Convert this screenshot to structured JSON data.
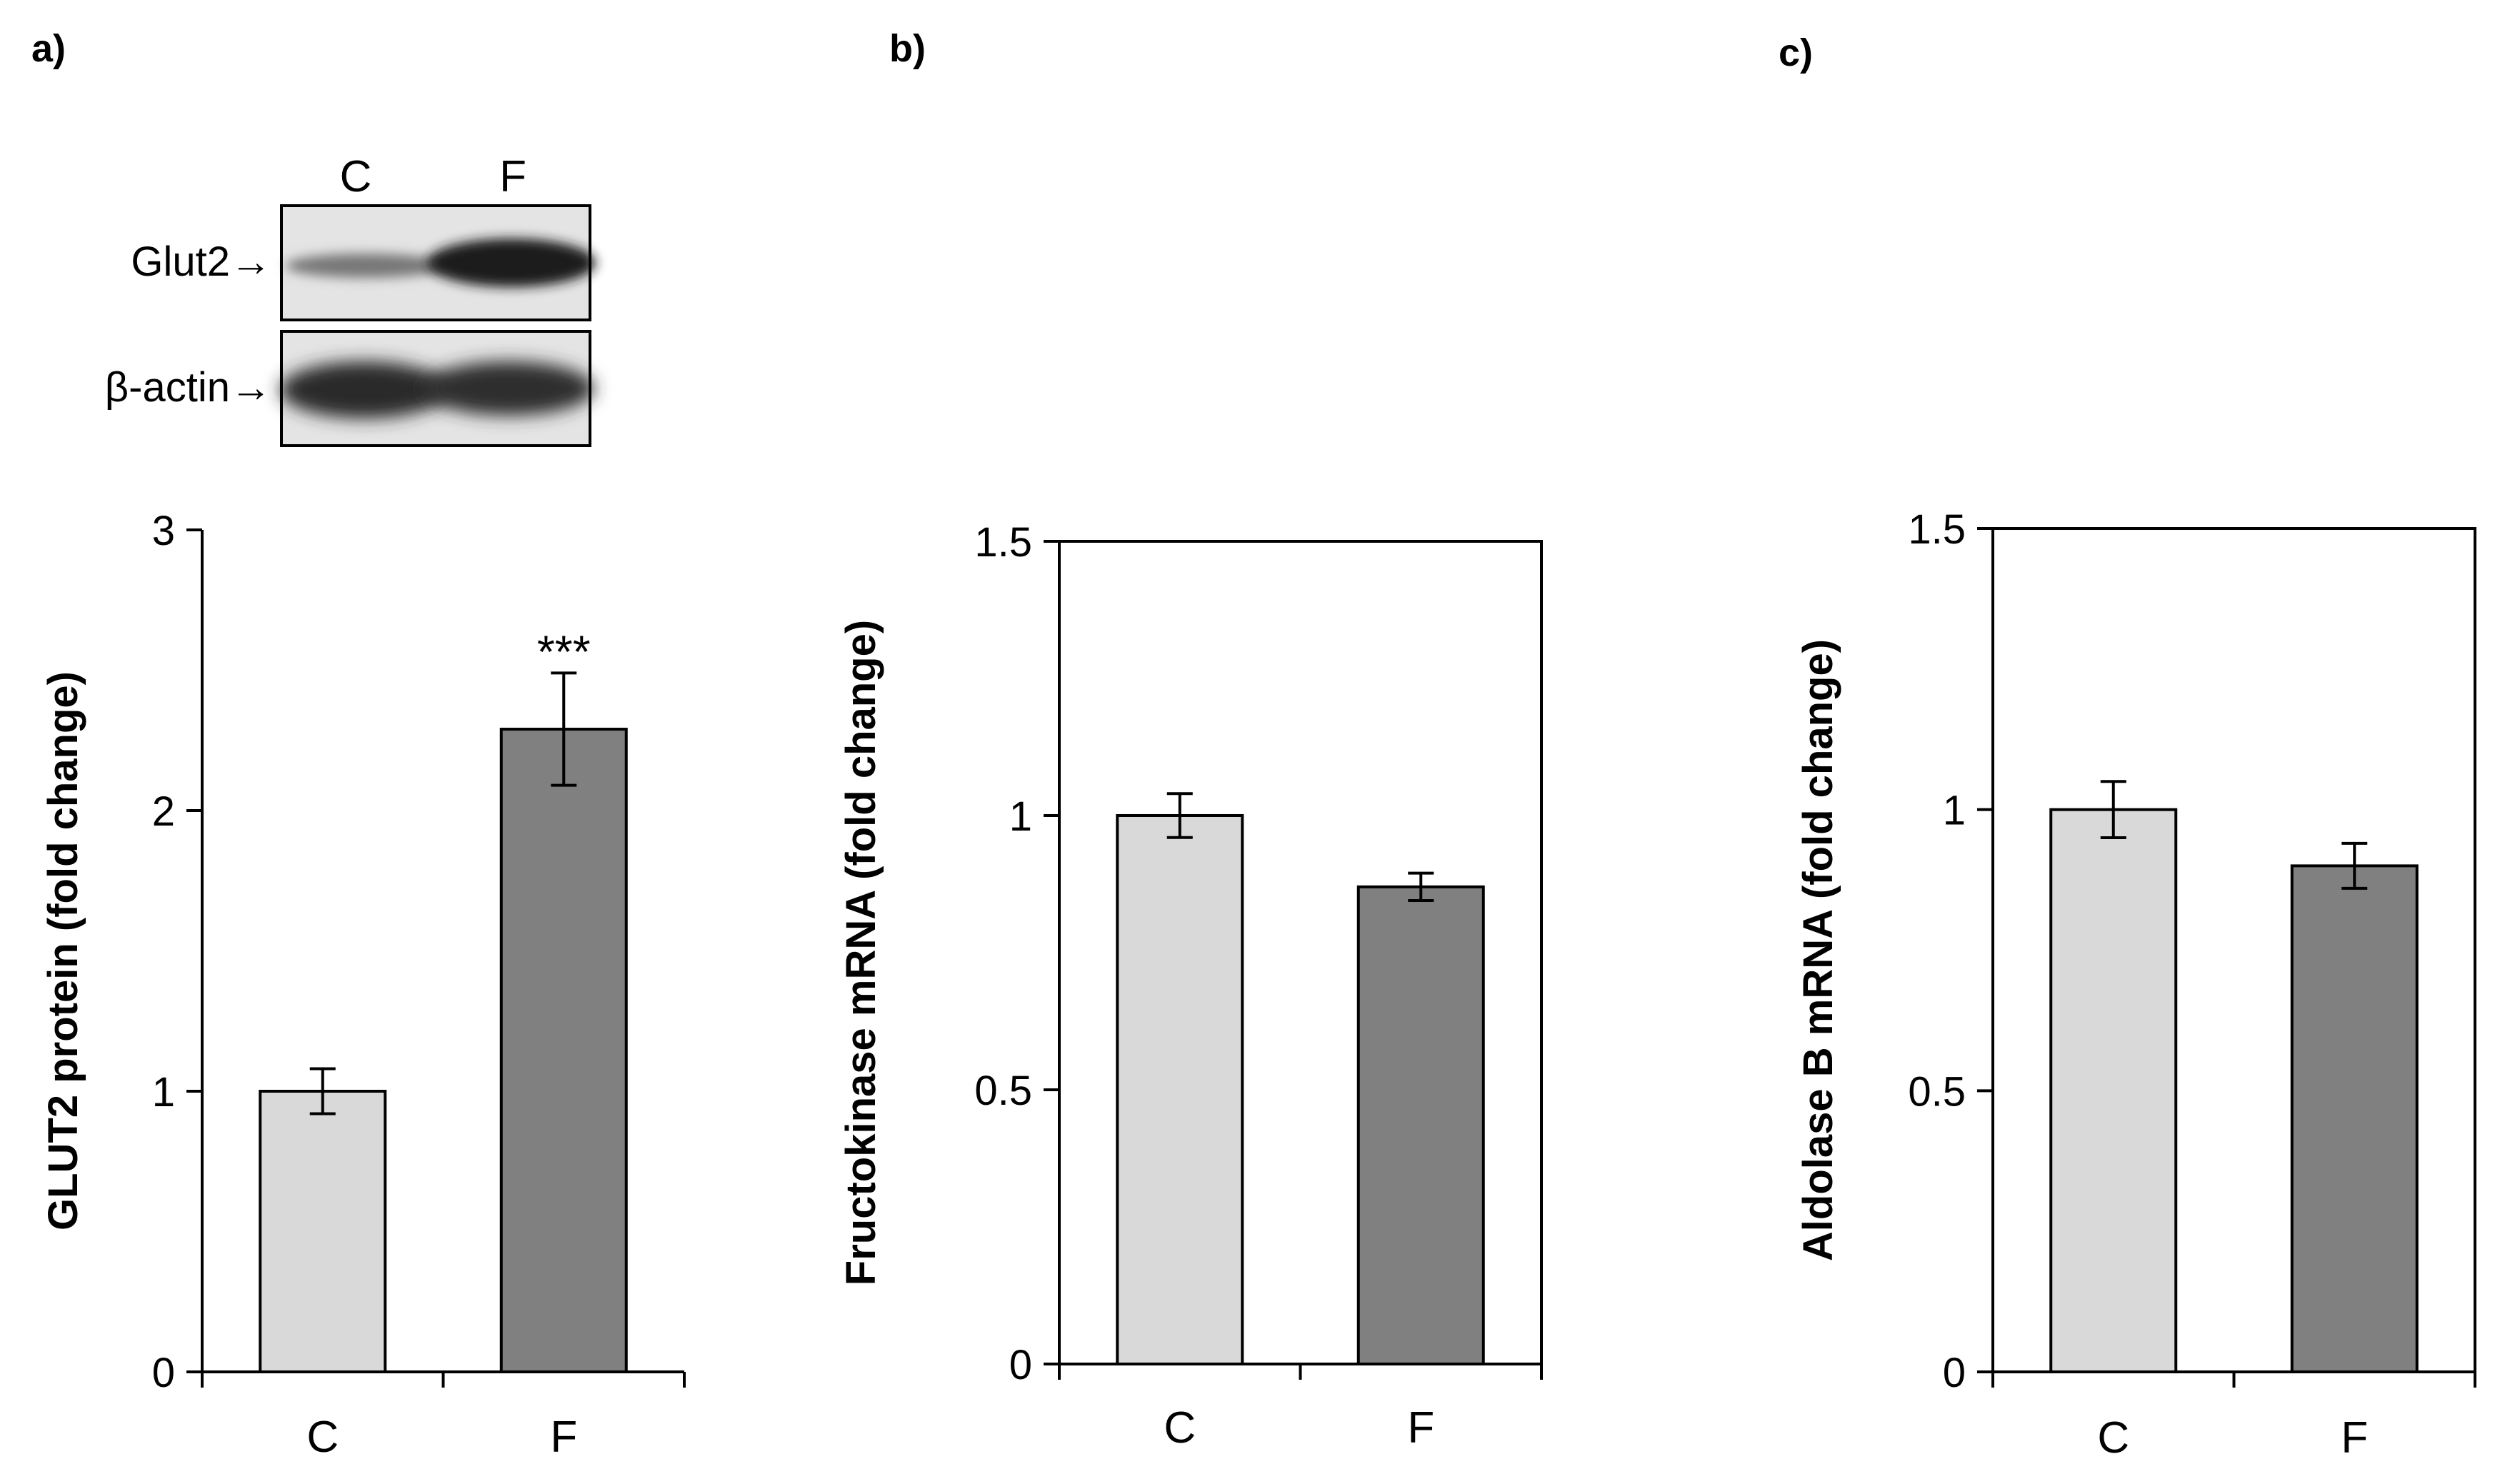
{
  "panels": [
    {
      "letter": "a)"
    },
    {
      "letter": "b)"
    },
    {
      "letter": "c)"
    }
  ],
  "blot": {
    "lane_labels": [
      "C",
      "F"
    ],
    "row_labels": [
      "Glut2→",
      "β-actin→"
    ]
  },
  "colors": {
    "control_bar": "#d9d9d9",
    "treated_bar": "#808080",
    "axis": "#000000"
  },
  "chart_data": [
    {
      "type": "bar",
      "panel": "a)",
      "categories": [
        "C",
        "F"
      ],
      "values": [
        1.0,
        2.29
      ],
      "errors": [
        0.08,
        0.2
      ],
      "annotations": [
        "",
        "***"
      ],
      "ylabel": "GLUT2  protein (fold change)",
      "ylim": [
        0,
        3
      ],
      "yticks": [
        0,
        1,
        2,
        3
      ],
      "ytick_labels": [
        "0",
        "1",
        "2",
        "3"
      ],
      "frame": "left-axis"
    },
    {
      "type": "bar",
      "panel": "b)",
      "categories": [
        "C",
        "F"
      ],
      "values": [
        1.0,
        0.87
      ],
      "errors": [
        0.04,
        0.025
      ],
      "annotations": [
        "",
        ""
      ],
      "ylabel": "Fructokinase mRNA (fold change)",
      "ylim": [
        0,
        1.5
      ],
      "yticks": [
        0,
        0.5,
        1,
        1.5
      ],
      "ytick_labels": [
        "0",
        "0.5",
        "1",
        "1.5"
      ],
      "frame": "box"
    },
    {
      "type": "bar",
      "panel": "c)",
      "categories": [
        "C",
        "F"
      ],
      "values": [
        1.0,
        0.9
      ],
      "errors": [
        0.05,
        0.04
      ],
      "annotations": [
        "",
        ""
      ],
      "ylabel": "Aldolase B mRNA (fold change)",
      "ylim": [
        0,
        1.5
      ],
      "yticks": [
        0,
        0.5,
        1,
        1.5
      ],
      "ytick_labels": [
        "0",
        "0.5",
        "1",
        "1.5"
      ],
      "frame": "box"
    }
  ]
}
